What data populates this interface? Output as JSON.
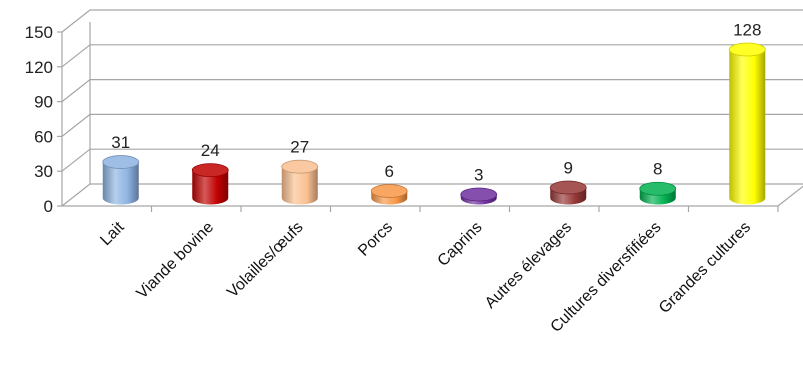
{
  "chart_data": {
    "type": "bar",
    "style": "3d-cylinder",
    "categories": [
      "Lait",
      "Viande bovine",
      "Volailles/œufs",
      "Porcs",
      "Caprins",
      "Autres élevages",
      "Cultures diversfifiées",
      "Grandes cultures"
    ],
    "values": [
      31,
      24,
      27,
      6,
      3,
      9,
      8,
      128
    ],
    "data_labels": [
      "31",
      "24",
      "27",
      "6",
      "3",
      "9",
      "8",
      "128"
    ],
    "colors": [
      "#8db3e2",
      "#c00000",
      "#fac090",
      "#f79646",
      "#7030a0",
      "#953735",
      "#00b050",
      "#ffff00"
    ],
    "title": "",
    "xlabel": "",
    "ylabel": "",
    "ylim": [
      0,
      150
    ],
    "yticks": [
      "0",
      "30",
      "60",
      "90",
      "120",
      "150"
    ],
    "grid": true,
    "legend": "none"
  }
}
